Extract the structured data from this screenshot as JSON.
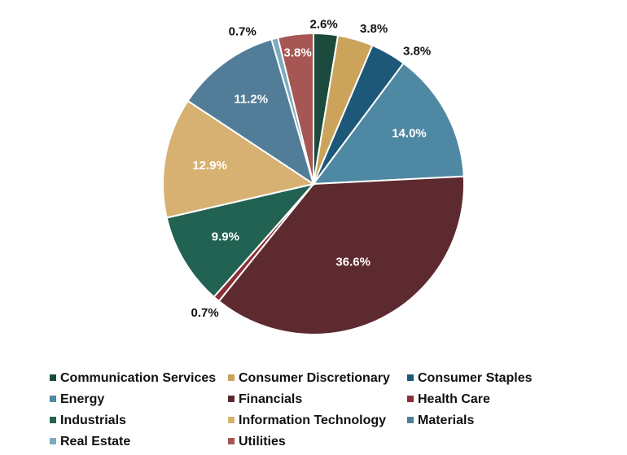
{
  "chart_data": {
    "type": "pie",
    "title": "",
    "categories": [
      "Communication Services",
      "Consumer Discretionary",
      "Consumer Staples",
      "Energy",
      "Financials",
      "Health Care",
      "Industrials",
      "Information Technology",
      "Materials",
      "Real Estate",
      "Utilities"
    ],
    "values": [
      2.6,
      3.8,
      3.8,
      14.0,
      36.6,
      0.7,
      9.9,
      12.9,
      11.2,
      0.7,
      3.8
    ],
    "labels": [
      "2.6%",
      "3.8%",
      "3.8%",
      "14.0%",
      "36.6%",
      "0.7%",
      "9.9%",
      "12.9%",
      "11.2%",
      "0.7%",
      "3.8%"
    ],
    "colors": [
      "#1c4a3c",
      "#cba35b",
      "#1e5878",
      "#4f88a3",
      "#5d2a2f",
      "#8b3036",
      "#226253",
      "#d7b172",
      "#527d98",
      "#7eaac0",
      "#a65653"
    ],
    "start_angle_deg": 0,
    "direction": "clockwise",
    "legend_position": "bottom"
  }
}
